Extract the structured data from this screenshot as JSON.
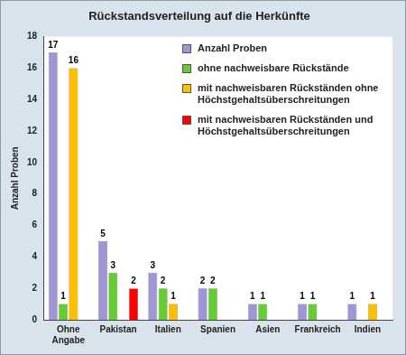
{
  "chart_data": {
    "type": "bar",
    "title": "Rückstandsverteilung auf die Herkünfte",
    "y_label": "Anzahl Proben",
    "categories": [
      "Ohne Angabe",
      "Pakistan",
      "Italien",
      "Spanien",
      "Asien",
      "Frankreich",
      "Indien"
    ],
    "series": [
      {
        "name": "Anzahl Proben",
        "color": "#9f96d6",
        "values": [
          17,
          5,
          3,
          2,
          1,
          1,
          1
        ]
      },
      {
        "name": "ohne nachweisbare Rückstände",
        "color": "#66cc33",
        "values": [
          1,
          3,
          2,
          2,
          1,
          1,
          null
        ]
      },
      {
        "name": "mit nachweisbaren Rückständen ohne Höchstgehaltsüberschreitungen",
        "color": "#ffbf00",
        "values": [
          16,
          null,
          1,
          null,
          null,
          null,
          1
        ]
      },
      {
        "name": "mit nachweisbaren Rückständen und Höchstgehaltsüberschreitungen",
        "color": "#ff0000",
        "values": [
          null,
          2,
          null,
          null,
          null,
          null,
          null
        ]
      }
    ],
    "ylim": [
      0,
      18
    ],
    "yticks": [
      0,
      2,
      4,
      6,
      8,
      10,
      12,
      14,
      16,
      18
    ],
    "grid": false,
    "legend": "top-right",
    "data_labels": true
  }
}
